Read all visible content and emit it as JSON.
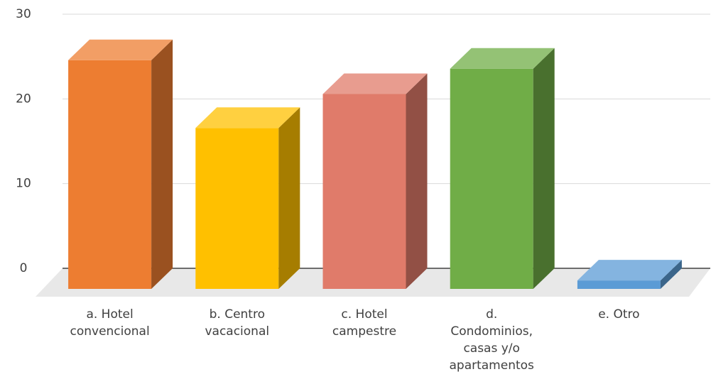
{
  "chart_data": {
    "type": "bar3d",
    "categories": [
      [
        "a. Hotel",
        "convencional"
      ],
      [
        "b. Centro",
        "vacacional"
      ],
      [
        "c. Hotel",
        "campestre"
      ],
      [
        "d.",
        "Condominios,",
        "casas y/o",
        "apartamentos"
      ],
      [
        "e. Otro"
      ]
    ],
    "values": [
      27,
      19,
      23,
      26,
      1
    ],
    "colors": [
      "#ed7d31",
      "#ffc000",
      "#e07b6a",
      "#70ad47",
      "#5b9bd5"
    ],
    "ylim": [
      0,
      30
    ],
    "yticks": [
      0,
      10,
      20,
      30
    ],
    "grid": true
  }
}
